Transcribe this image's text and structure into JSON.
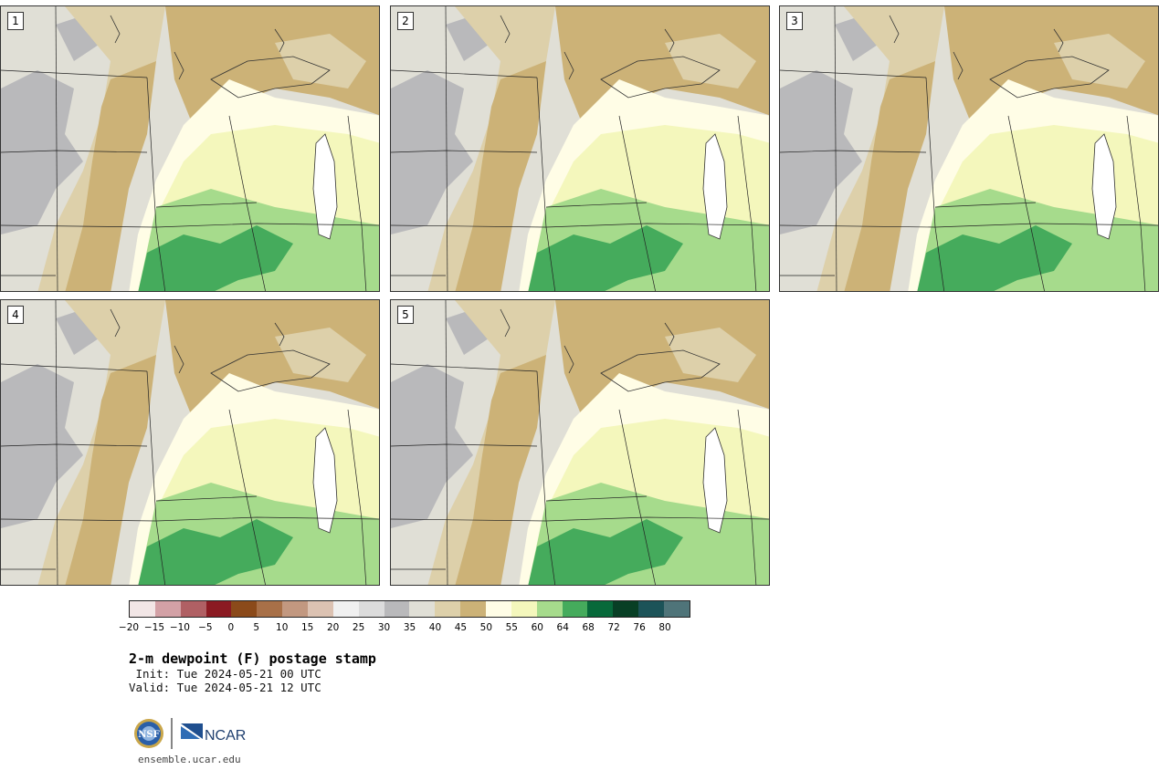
{
  "panels": [
    {
      "label": "1"
    },
    {
      "label": "2"
    },
    {
      "label": "3"
    },
    {
      "label": "4"
    },
    {
      "label": "5"
    }
  ],
  "colorbar": {
    "colors": [
      "#f2e6e6",
      "#d3a1a6",
      "#b06064",
      "#8b1a22",
      "#8b4a1a",
      "#a87048",
      "#c29880",
      "#dcc2b2",
      "#f0f0f0",
      "#dcdcdc",
      "#b9b9bb",
      "#e0dfd6",
      "#ddd0aa",
      "#ccb277",
      "#fffde6",
      "#f4f7bc",
      "#a6db8c",
      "#45ab5c",
      "#07693a",
      "#083f25",
      "#1c5358",
      "#4f7479"
    ],
    "ticks": [
      "−20",
      "−15",
      "−10",
      "−5",
      "0",
      "5",
      "10",
      "15",
      "20",
      "25",
      "30",
      "35",
      "40",
      "45",
      "50",
      "55",
      "60",
      "64",
      "68",
      "72",
      "76",
      "80"
    ]
  },
  "title": "2-m dewpoint (F) postage stamp",
  "init": " Init: Tue 2024-05-21 00 UTC",
  "valid": "Valid: Tue 2024-05-21 12 UTC",
  "logo": {
    "nsf": "NSF",
    "ncar": "NCAR"
  },
  "url": "ensemble.ucar.edu"
}
